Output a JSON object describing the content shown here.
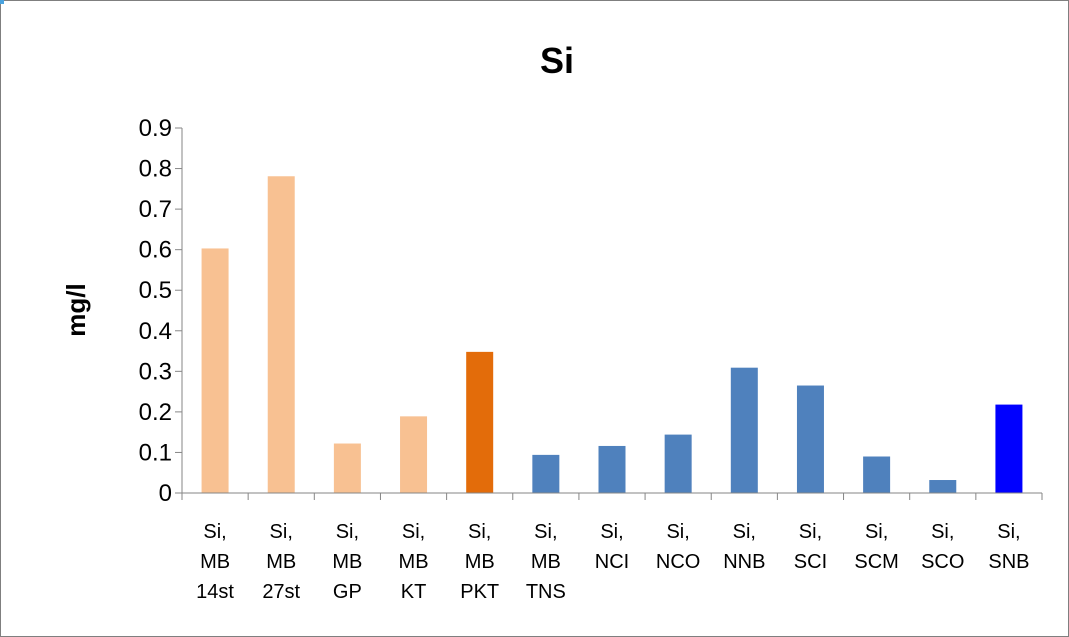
{
  "chart_data": {
    "type": "bar",
    "title": "Si",
    "xlabel": "",
    "ylabel": "mg/l",
    "ylim": [
      0,
      0.9
    ],
    "yticks": [
      "0",
      "0.1",
      "0.2",
      "0.3",
      "0.4",
      "0.5",
      "0.6",
      "0.7",
      "0.8",
      "0.9"
    ],
    "grid": false,
    "legend": "none",
    "categories": [
      [
        "Si,",
        "MB",
        "14st"
      ],
      [
        "Si,",
        "MB",
        "27st"
      ],
      [
        "Si,",
        "MB",
        "GP"
      ],
      [
        "Si,",
        "MB",
        "KT"
      ],
      [
        "Si,",
        "MB",
        "PKT"
      ],
      [
        "Si,",
        "MB",
        "TNS"
      ],
      [
        "Si,",
        "NCI"
      ],
      [
        "Si,",
        "NCO"
      ],
      [
        "Si,",
        "NNB"
      ],
      [
        "Si,",
        "SCI"
      ],
      [
        "Si,",
        "SCM"
      ],
      [
        "Si,",
        "SCO"
      ],
      [
        "Si,",
        "SNB"
      ]
    ],
    "values": [
      0.603,
      0.781,
      0.122,
      0.189,
      0.348,
      0.094,
      0.116,
      0.144,
      0.309,
      0.265,
      0.09,
      0.032,
      0.218
    ],
    "colors": [
      "#f8c192",
      "#f8c192",
      "#f8c192",
      "#f8c192",
      "#e36c0a",
      "#4f81bd",
      "#4f81bd",
      "#4f81bd",
      "#4f81bd",
      "#4f81bd",
      "#4f81bd",
      "#4f81bd",
      "#0000ff"
    ]
  }
}
